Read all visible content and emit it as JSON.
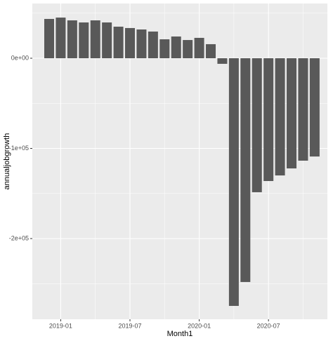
{
  "chart_data": {
    "type": "bar",
    "x": [
      "2018-12",
      "2019-01",
      "2019-02",
      "2019-03",
      "2019-04",
      "2019-05",
      "2019-06",
      "2019-07",
      "2019-08",
      "2019-09",
      "2019-10",
      "2019-11",
      "2019-12",
      "2020-01",
      "2020-02",
      "2020-03",
      "2020-04",
      "2020-05",
      "2020-06",
      "2020-07",
      "2020-08",
      "2020-09",
      "2020-10",
      "2020-11"
    ],
    "values": [
      43600,
      45100,
      42000,
      39700,
      42000,
      39700,
      35000,
      33500,
      31900,
      29600,
      21000,
      24100,
      20200,
      22600,
      15600,
      -6200,
      -274700,
      -248200,
      -148600,
      -136200,
      -130000,
      -122200,
      -113600,
      -109000
    ],
    "color": "#595959",
    "xlabel": "Month1",
    "ylabel": "annualjobgrowth",
    "xticks": [
      "2019-01",
      "2019-07",
      "2020-01",
      "2020-07"
    ],
    "ylim": [
      -289500,
      60700
    ],
    "yticks": [
      {
        "value": 0,
        "label": "0e+00"
      },
      {
        "value": -100000,
        "label": "-1e+05"
      },
      {
        "value": -200000,
        "label": "-2e+05"
      }
    ],
    "grid": true
  }
}
